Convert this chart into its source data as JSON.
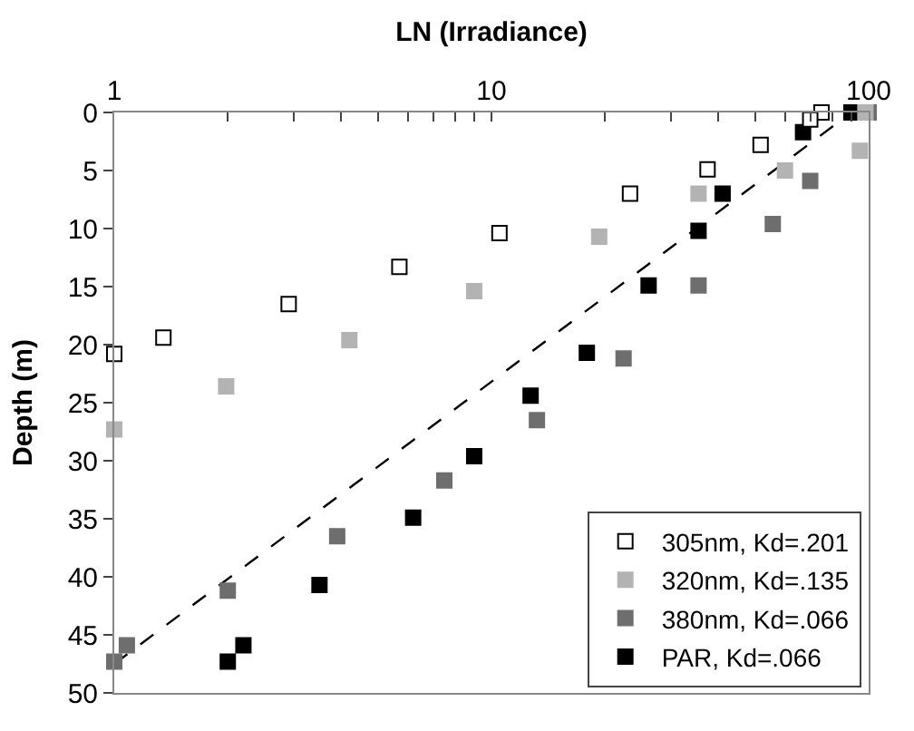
{
  "chart_data": {
    "type": "scatter",
    "xlabel": "LN (Irradiance)",
    "ylabel": "Depth (m)",
    "log": "x",
    "xlim": [
      1,
      100
    ],
    "xticks": [
      1,
      {
        "value": 2,
        "label": null
      },
      {
        "value": 3,
        "label": null
      },
      {
        "value": 4,
        "label": null
      },
      {
        "value": 5,
        "label": null
      },
      {
        "value": 6,
        "label": null
      },
      {
        "value": 7,
        "label": null
      },
      {
        "value": 8,
        "label": null
      },
      {
        "value": 9,
        "label": null
      },
      10,
      {
        "value": 20,
        "label": null
      },
      {
        "value": 30,
        "label": null
      },
      {
        "value": 40,
        "label": null
      },
      {
        "value": 50,
        "label": null
      },
      {
        "value": 60,
        "label": null
      },
      {
        "value": 70,
        "label": null
      },
      {
        "value": 80,
        "label": null
      },
      {
        "value": 90,
        "label": null
      },
      100
    ],
    "ylim": [
      50,
      0
    ],
    "yticks": [
      0,
      5,
      10,
      15,
      20,
      25,
      30,
      35,
      40,
      45,
      50
    ],
    "grid": false,
    "legend": "bottom right",
    "marker": "square",
    "series": [
      {
        "name": "305nm, Kd=.201",
        "color": "#ffffff",
        "x": [
          75,
          70,
          51.7,
          37.4,
          23.3,
          10.5,
          5.7,
          2.9,
          1.35,
          1
        ],
        "values": [
          0,
          0.6,
          2.8,
          4.9,
          7,
          10.4,
          13.3,
          16.5,
          19.4,
          20.8
        ]
      },
      {
        "name": "320nm, Kd=.135",
        "color": "#b3b3b3",
        "x": [
          98,
          94.8,
          60,
          35.4,
          19.3,
          9,
          4.2,
          1.98,
          1
        ],
        "values": [
          0,
          3.3,
          5,
          7,
          10.7,
          15.4,
          19.6,
          23.6,
          27.3
        ]
      },
      {
        "name": "380nm, Kd=.066",
        "color": "#6e6e6e",
        "x": [
          100,
          70,
          55.7,
          35.4,
          22.4,
          13.2,
          7.5,
          3.9,
          2,
          1.08,
          1
        ],
        "values": [
          0,
          5.9,
          9.6,
          14.9,
          21.2,
          26.5,
          31.7,
          36.5,
          41.2,
          45.9,
          47.3
        ]
      },
      {
        "name": "PAR, Kd=.066",
        "color": "#000000",
        "x": [
          90,
          67,
          41,
          35.4,
          26.1,
          17.9,
          12.7,
          9,
          6.2,
          3.5,
          2.2,
          2
        ],
        "values": [
          0,
          1.7,
          7,
          10.2,
          14.9,
          20.7,
          24.4,
          29.6,
          34.9,
          40.7,
          45.9,
          47.3
        ]
      },
      {
        "type": "line",
        "color": "#000000",
        "line_style": "dashed",
        "marker": "none",
        "x": [
          1,
          90
        ],
        "values": [
          47.5,
          0
        ]
      }
    ]
  }
}
